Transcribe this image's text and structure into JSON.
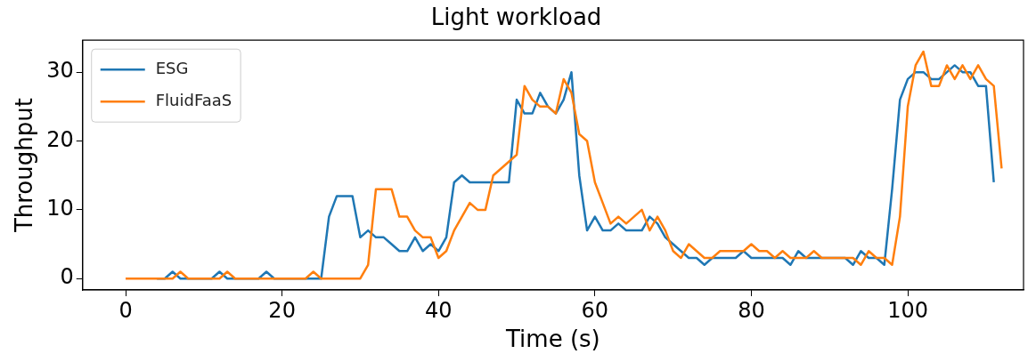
{
  "chart_data": {
    "type": "line",
    "title": "Light workload",
    "xlabel": "Time (s)",
    "ylabel": "Throughput",
    "x": [
      0,
      1,
      2,
      3,
      4,
      5,
      6,
      7,
      8,
      9,
      10,
      11,
      12,
      13,
      14,
      15,
      16,
      17,
      18,
      19,
      20,
      21,
      22,
      23,
      24,
      25,
      26,
      27,
      28,
      29,
      30,
      31,
      32,
      33,
      34,
      35,
      36,
      37,
      38,
      39,
      40,
      41,
      42,
      43,
      44,
      45,
      46,
      47,
      48,
      49,
      50,
      51,
      52,
      53,
      54,
      55,
      56,
      57,
      58,
      59,
      60,
      61,
      62,
      63,
      64,
      65,
      66,
      67,
      68,
      69,
      70,
      71,
      72,
      73,
      74,
      75,
      76,
      77,
      78,
      79,
      80,
      81,
      82,
      83,
      84,
      85,
      86,
      87,
      88,
      89,
      90,
      91,
      92,
      93,
      94,
      95,
      96,
      97,
      98,
      99,
      100,
      101,
      102,
      103,
      104,
      105,
      106,
      107,
      108,
      109,
      110,
      111,
      112
    ],
    "series": [
      {
        "name": "ESG",
        "color": "#1f77b4",
        "values": [
          null,
          null,
          null,
          null,
          0,
          0,
          1,
          0,
          0,
          0,
          0,
          0,
          1,
          0,
          0,
          0,
          0,
          0,
          1,
          0,
          0,
          0,
          0,
          0,
          0,
          0,
          9,
          12,
          12,
          12,
          6,
          7,
          6,
          6,
          5,
          4,
          4,
          6,
          4,
          5,
          4,
          6,
          14,
          15,
          14,
          14,
          14,
          14,
          14,
          14,
          26,
          24,
          24,
          27,
          25,
          24,
          26,
          30,
          15,
          7,
          9,
          7,
          7,
          8,
          7,
          7,
          7,
          9,
          8,
          6,
          5,
          4,
          3,
          3,
          2,
          3,
          3,
          3,
          3,
          4,
          3,
          3,
          3,
          3,
          3,
          2,
          4,
          3,
          3,
          3,
          3,
          3,
          3,
          2,
          4,
          3,
          3,
          2,
          13,
          26,
          29,
          30,
          30,
          29,
          29,
          30,
          31,
          30,
          30,
          28,
          28,
          14,
          null
        ]
      },
      {
        "name": "FluidFaaS",
        "color": "#ff7f0e",
        "values": [
          0,
          0,
          0,
          0,
          0,
          0,
          0,
          1,
          0,
          0,
          0,
          0,
          0,
          1,
          0,
          0,
          0,
          0,
          0,
          0,
          0,
          0,
          0,
          0,
          1,
          0,
          0,
          0,
          0,
          0,
          0,
          2,
          13,
          13,
          13,
          9,
          9,
          7,
          6,
          6,
          3,
          4,
          7,
          9,
          11,
          10,
          10,
          15,
          16,
          17,
          18,
          28,
          26,
          25,
          25,
          24,
          29,
          27,
          21,
          20,
          14,
          11,
          8,
          9,
          8,
          9,
          10,
          7,
          9,
          7,
          4,
          3,
          5,
          4,
          3,
          3,
          4,
          4,
          4,
          4,
          5,
          4,
          4,
          3,
          4,
          3,
          3,
          3,
          4,
          3,
          3,
          3,
          3,
          3,
          2,
          4,
          3,
          3,
          2,
          9,
          25,
          31,
          33,
          28,
          28,
          31,
          29,
          31,
          29,
          31,
          29,
          28,
          16
        ]
      }
    ],
    "xlim": [
      -5.5,
      114.8
    ],
    "xticks": [
      0,
      20,
      40,
      60,
      80,
      100
    ],
    "ylim": [
      -1.65,
      34.65
    ],
    "yticks": [
      0,
      10,
      20,
      30
    ],
    "grid": false,
    "legend": "top left",
    "line_style": "solid"
  }
}
